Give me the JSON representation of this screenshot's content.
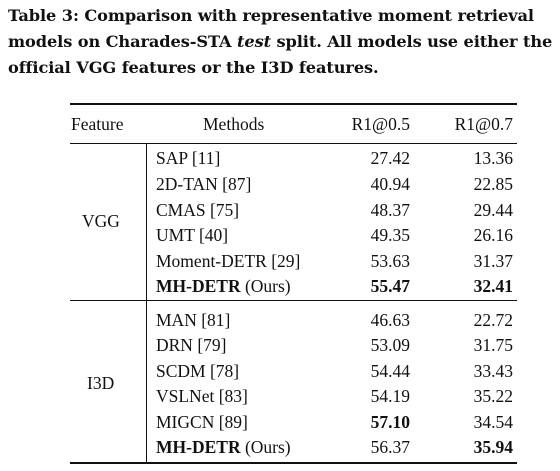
{
  "caption": {
    "line1": "Table 3: Comparison with representative moment retrieval",
    "line2_before": "models on Charades-STA ",
    "line2_italic": "test",
    "line2_after": " split. All models use either the",
    "line3": "official VGG features or the I3D features."
  },
  "table": {
    "headers": {
      "feature": "Feature",
      "methods": "Methods",
      "r1_05": "R1@0.5",
      "r1_07": "R1@0.7"
    },
    "groups": [
      {
        "feature": "VGG",
        "rows": [
          {
            "method": "SAP [11]",
            "r1_05": "27.42",
            "r1_07": "13.36"
          },
          {
            "method": "2D-TAN [87]",
            "r1_05": "40.94",
            "r1_07": "22.85"
          },
          {
            "method": "CMAS [75]",
            "r1_05": "48.37",
            "r1_07": "29.44"
          },
          {
            "method": "UMT [40]",
            "r1_05": "49.35",
            "r1_07": "26.16"
          },
          {
            "method": "Moment-DETR [29]",
            "r1_05": "53.63",
            "r1_07": "31.37"
          },
          {
            "method_bold": "MH-DETR",
            "method_rest": " (Ours)",
            "r1_05": "55.47",
            "r1_07": "32.41"
          }
        ]
      },
      {
        "feature": "I3D",
        "rows": [
          {
            "method": "MAN [81]",
            "r1_05": "46.63",
            "r1_07": "22.72"
          },
          {
            "method": "DRN [79]",
            "r1_05": "53.09",
            "r1_07": "31.75"
          },
          {
            "method": "SCDM [78]",
            "r1_05": "54.44",
            "r1_07": "33.43"
          },
          {
            "method": "VSLNet [83]",
            "r1_05": "54.19",
            "r1_07": "35.22"
          },
          {
            "method": "MIGCN [89]",
            "r1_05": "57.10",
            "r1_07": "34.54"
          },
          {
            "method_bold": "MH-DETR",
            "method_rest": " (Ours)",
            "r1_05": "56.37",
            "r1_07": "35.94"
          }
        ]
      }
    ]
  }
}
